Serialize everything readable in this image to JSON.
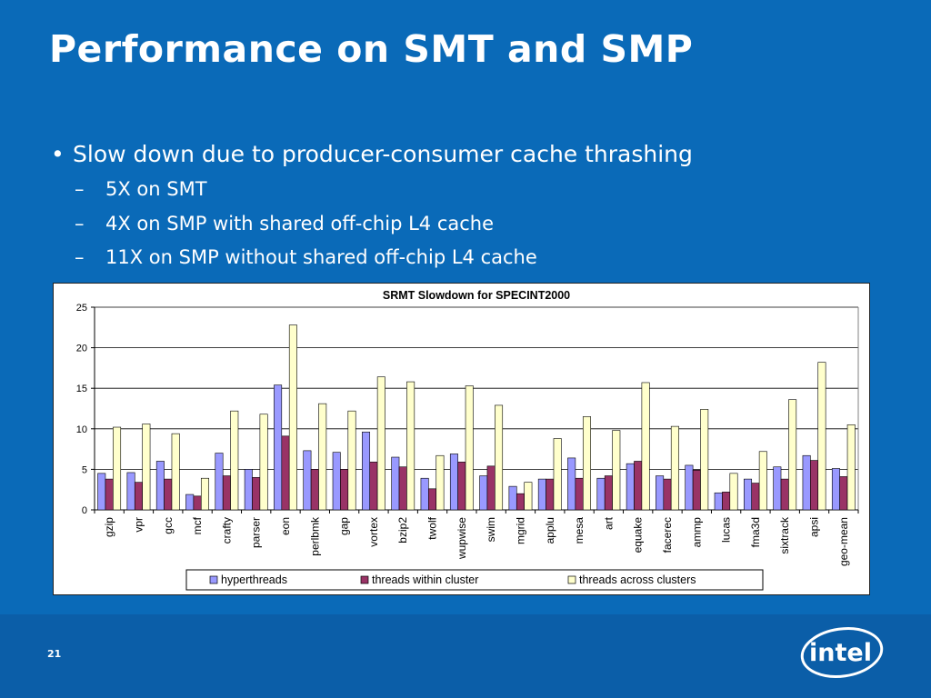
{
  "slide": {
    "title": "Performance on SMT and SMP",
    "bullet": "Slow down due to producer-consumer cache thrashing",
    "subbullets": [
      "5X on SMT",
      "4X on SMP with shared off-chip L4 cache",
      "11X on SMP without shared off-chip L4 cache"
    ],
    "bullet_glyph": "•",
    "dash_glyph": "–",
    "page_number": "21",
    "logo_text": "intel",
    "colors": {
      "background": "#0a6ab8",
      "text": "#ffffff"
    }
  },
  "chart_data": {
    "type": "bar",
    "title": "SRMT Slowdown for SPECINT2000",
    "xlabel": "",
    "ylabel": "",
    "ylim": [
      0,
      25
    ],
    "yticks": [
      0,
      5,
      10,
      15,
      20,
      25
    ],
    "grid": true,
    "legend_position": "bottom",
    "categories": [
      "gzip",
      "vpr",
      "gcc",
      "mcf",
      "crafty",
      "parser",
      "eon",
      "perlbmk",
      "gap",
      "vortex",
      "bzip2",
      "twolf",
      "wupwise",
      "swim",
      "mgrid",
      "applu",
      "mesa",
      "art",
      "equake",
      "facerec",
      "ammp",
      "lucas",
      "fma3d",
      "sixtrack",
      "apsi",
      "geo-mean"
    ],
    "series": [
      {
        "name": "hyperthreads",
        "color": "#9999ff",
        "values": [
          4.5,
          4.6,
          6.0,
          1.9,
          7.0,
          5.0,
          15.4,
          7.3,
          7.1,
          9.6,
          6.5,
          3.9,
          6.9,
          4.2,
          2.9,
          3.8,
          6.4,
          3.9,
          5.7,
          4.2,
          5.5,
          2.1,
          3.8,
          5.3,
          6.7,
          5.1
        ]
      },
      {
        "name": "threads within cluster",
        "color": "#993366",
        "values": [
          3.8,
          3.4,
          3.8,
          1.7,
          4.2,
          4.0,
          9.1,
          5.0,
          5.0,
          5.9,
          5.3,
          2.6,
          5.9,
          5.4,
          2.0,
          3.8,
          3.9,
          4.2,
          6.0,
          3.8,
          4.9,
          2.2,
          3.3,
          3.8,
          6.1,
          4.1
        ]
      },
      {
        "name": "threads across clusters",
        "color": "#ffffcc",
        "values": [
          10.2,
          10.6,
          9.4,
          3.9,
          12.2,
          11.8,
          22.8,
          13.1,
          12.2,
          16.4,
          15.8,
          6.7,
          15.3,
          12.9,
          3.4,
          8.8,
          11.5,
          9.8,
          15.7,
          10.3,
          12.4,
          4.5,
          7.2,
          13.6,
          18.2,
          10.5
        ]
      }
    ]
  }
}
